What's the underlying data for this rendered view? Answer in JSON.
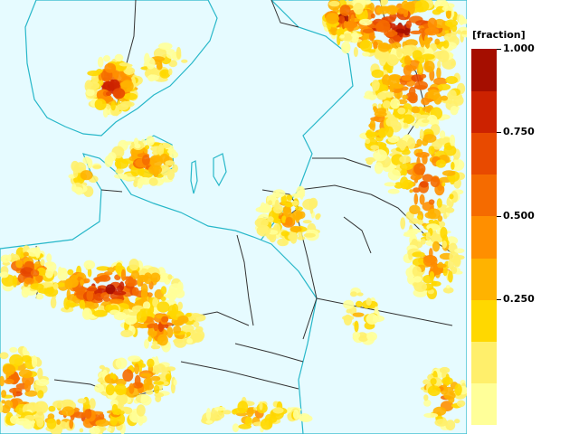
{
  "map": {
    "background_color": "#e6fbff",
    "coast_color": "#27b7c9",
    "border_color": "#333333",
    "quantity": "fraction"
  },
  "legend": {
    "unit_label": "[fraction]",
    "ticks": [
      "1.000",
      "0.750",
      "0.500",
      "0.250"
    ],
    "colors": [
      "#ffff99",
      "#ffef6b",
      "#ffd800",
      "#ffb300",
      "#ff8f00",
      "#f56b00",
      "#e84a00",
      "#cc2200",
      "#a50e00"
    ]
  }
}
